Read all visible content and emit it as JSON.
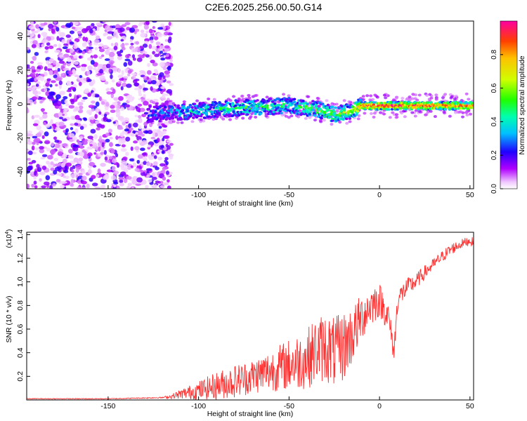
{
  "page": {
    "title": "C2E6.2025.256.00.50.G14"
  },
  "chart_data": [
    {
      "type": "heatmap",
      "title": "C2E6.2025.256.00.50.G14",
      "xlabel": "Height of straight line (km)",
      "ylabel": "Frequency (Hz)",
      "xlim": [
        -195,
        52
      ],
      "ylim": [
        -50,
        49
      ],
      "x_ticks": [
        -150,
        -100,
        -50,
        0,
        50
      ],
      "x_tick_labels": [
        "-150",
        "-100",
        "-50",
        "0",
        "50"
      ],
      "y_ticks": [
        -40,
        -20,
        0,
        20,
        40
      ],
      "y_tick_labels": [
        "-40",
        "-20",
        "0",
        "20",
        "40"
      ],
      "grid": false,
      "colorbar": {
        "label": "Normalized spectral amplitude",
        "range": [
          0,
          1
        ],
        "ticks": [
          0.0,
          0.2,
          0.4,
          0.6,
          0.8
        ],
        "tick_labels": [
          "0.0",
          "0.2",
          "0.4",
          "0.6",
          "0.8"
        ],
        "colormap": "rainbow (violet=0 to red=1)"
      },
      "description_points": {
        "noise_region_height_range_km": [
          -195,
          -120
        ],
        "signal_band": {
          "height_km": [
            -128,
            -100,
            -75,
            -50,
            -35,
            -25,
            -15,
            -10,
            0,
            25,
            50
          ],
          "center_frequency_hz": [
            -6,
            -4,
            -2,
            -1,
            -3,
            -6,
            -4,
            -1,
            -1,
            -1,
            -1
          ],
          "normalized_amplitude": [
            0.2,
            0.35,
            0.45,
            0.45,
            0.5,
            0.55,
            0.6,
            0.9,
            0.95,
            0.9,
            0.85
          ]
        }
      }
    },
    {
      "type": "line",
      "xlabel": "Height of straight line (km)",
      "ylabel": "SNR (10 * v/v)",
      "y_multiplier_label": "(x10",
      "y_multiplier_exponent": "4",
      "y_multiplier_close": ")",
      "xlim": [
        -195,
        52
      ],
      "ylim": [
        0,
        1.42
      ],
      "y_units": "x10^4",
      "x_ticks": [
        -150,
        -100,
        -50,
        0,
        50
      ],
      "x_tick_labels": [
        "-150",
        "-100",
        "-50",
        "0",
        "50"
      ],
      "y_ticks": [
        0.2,
        0.4,
        0.6,
        0.8,
        1.0,
        1.2,
        1.4
      ],
      "y_tick_labels": [
        "0.2",
        "0.4",
        "0.6",
        "0.8",
        "1.0",
        "1.2",
        "1.4"
      ],
      "grid": false,
      "series": [
        {
          "name": "SNR",
          "color": "#ff3030",
          "x": [
            -195,
            -150,
            -120,
            -115,
            -110,
            -100,
            -90,
            -80,
            -70,
            -60,
            -50,
            -40,
            -35,
            -30,
            -25,
            -20,
            -15,
            -10,
            -5,
            0,
            5,
            8,
            10,
            15,
            20,
            25,
            30,
            35,
            40,
            45,
            50,
            52
          ],
          "y": [
            0.01,
            0.01,
            0.02,
            0.03,
            0.05,
            0.08,
            0.12,
            0.16,
            0.2,
            0.25,
            0.3,
            0.35,
            0.42,
            0.45,
            0.4,
            0.45,
            0.55,
            0.7,
            0.8,
            0.85,
            0.7,
            0.4,
            0.85,
            0.95,
            1.0,
            1.08,
            1.15,
            1.22,
            1.28,
            1.32,
            1.35,
            1.33
          ],
          "noise_amplitude": [
            0.003,
            0.003,
            0.005,
            0.02,
            0.04,
            0.08,
            0.12,
            0.14,
            0.15,
            0.18,
            0.22,
            0.26,
            0.28,
            0.3,
            0.3,
            0.3,
            0.25,
            0.2,
            0.18,
            0.15,
            0.12,
            0.1,
            0.1,
            0.08,
            0.07,
            0.06,
            0.05,
            0.05,
            0.05,
            0.04,
            0.04,
            0.04
          ]
        }
      ]
    }
  ]
}
